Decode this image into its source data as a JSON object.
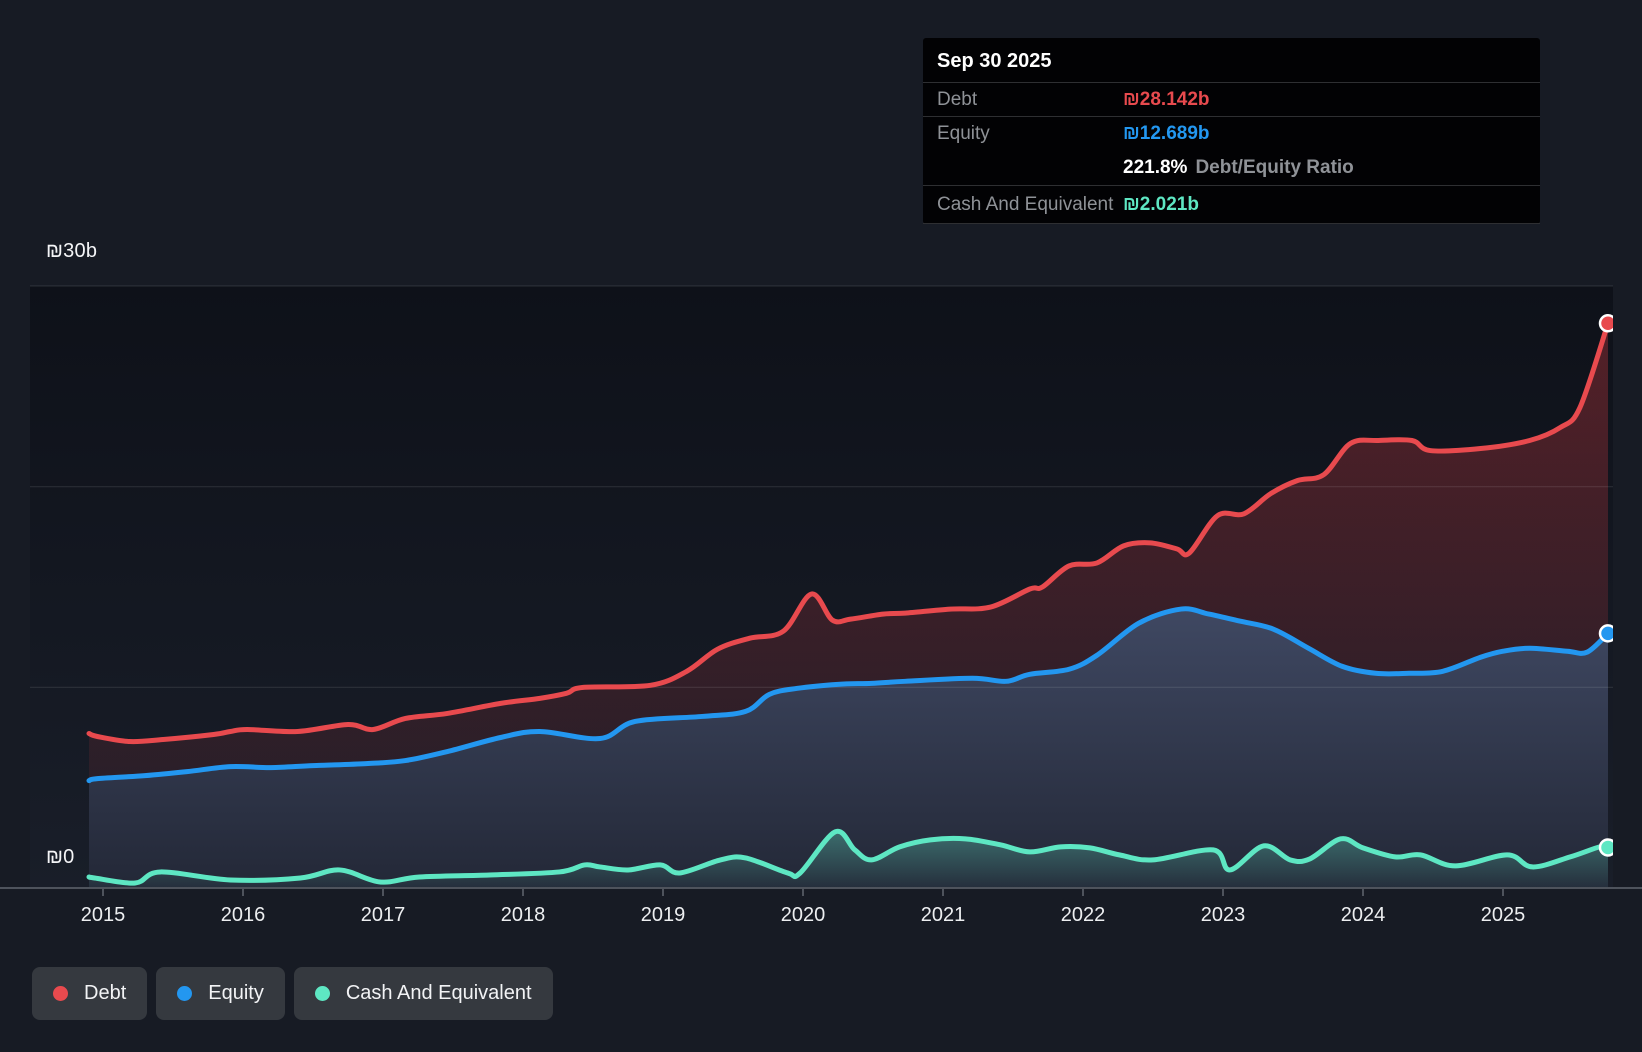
{
  "tooltip": {
    "date": "Sep 30 2025",
    "debt_label": "Debt",
    "debt_value": "₪28.142b",
    "equity_label": "Equity",
    "equity_value": "₪12.689b",
    "ratio_value": "221.8%",
    "ratio_label": "Debt/Equity Ratio",
    "cash_label": "Cash And Equivalent",
    "cash_value": "₪2.021b"
  },
  "colors": {
    "debt": "#e84a4e",
    "equity": "#2397f0",
    "cash": "#5ee7c3",
    "axis": "#4e535c",
    "gridline": "rgba(255,255,255,0.10)"
  },
  "legend": {
    "items": [
      {
        "label": "Debt",
        "color": "#e84a4e"
      },
      {
        "label": "Equity",
        "color": "#2397f0"
      },
      {
        "label": "Cash And Equivalent",
        "color": "#5ee7c3"
      }
    ]
  },
  "chart_data": {
    "type": "area",
    "x_ticks": [
      "2015",
      "2016",
      "2017",
      "2018",
      "2019",
      "2020",
      "2021",
      "2022",
      "2023",
      "2024",
      "2025"
    ],
    "ylim": [
      0,
      30
    ],
    "y_gridline_values": [
      30,
      20,
      10
    ],
    "y_axis_labels": [
      {
        "value": 30,
        "label": "₪30b"
      },
      {
        "value": 0,
        "label": "₪0"
      }
    ],
    "unit": "₪ billions",
    "legend_position": "bottom-left",
    "latest_point_date": "Sep 30 2025",
    "series": [
      {
        "name": "Debt",
        "color": "#e84a4e",
        "points": [
          [
            2014.9,
            7.7
          ],
          [
            2014.96,
            7.55
          ],
          [
            2015.19,
            7.3
          ],
          [
            2015.43,
            7.4
          ],
          [
            2015.79,
            7.65
          ],
          [
            2015.91,
            7.8
          ],
          [
            2016.03,
            7.9
          ],
          [
            2016.39,
            7.8
          ],
          [
            2016.75,
            8.15
          ],
          [
            2016.93,
            7.9
          ],
          [
            2017.16,
            8.45
          ],
          [
            2017.46,
            8.7
          ],
          [
            2017.84,
            9.2
          ],
          [
            2018.12,
            9.45
          ],
          [
            2018.31,
            9.7
          ],
          [
            2018.43,
            10.0
          ],
          [
            2018.91,
            10.1
          ],
          [
            2019.17,
            10.8
          ],
          [
            2019.39,
            11.9
          ],
          [
            2019.62,
            12.45
          ],
          [
            2019.86,
            12.8
          ],
          [
            2020.06,
            14.65
          ],
          [
            2020.21,
            13.35
          ],
          [
            2020.34,
            13.4
          ],
          [
            2020.57,
            13.65
          ],
          [
            2020.73,
            13.7
          ],
          [
            2021.05,
            13.9
          ],
          [
            2021.34,
            14.0
          ],
          [
            2021.62,
            14.9
          ],
          [
            2021.71,
            15.0
          ],
          [
            2021.9,
            16.05
          ],
          [
            2022.1,
            16.2
          ],
          [
            2022.29,
            17.05
          ],
          [
            2022.48,
            17.2
          ],
          [
            2022.67,
            16.9
          ],
          [
            2022.76,
            16.7
          ],
          [
            2022.96,
            18.55
          ],
          [
            2023.15,
            18.65
          ],
          [
            2023.34,
            19.65
          ],
          [
            2023.53,
            20.3
          ],
          [
            2023.72,
            20.6
          ],
          [
            2023.91,
            22.15
          ],
          [
            2024.11,
            22.3
          ],
          [
            2024.35,
            22.3
          ],
          [
            2024.48,
            21.8
          ],
          [
            2024.84,
            21.9
          ],
          [
            2025.19,
            22.3
          ],
          [
            2025.41,
            22.95
          ],
          [
            2025.55,
            23.95
          ],
          [
            2025.75,
            28.142
          ]
        ]
      },
      {
        "name": "Equity",
        "color": "#2397f0",
        "points": [
          [
            2014.9,
            5.35
          ],
          [
            2014.96,
            5.45
          ],
          [
            2015.3,
            5.6
          ],
          [
            2015.6,
            5.8
          ],
          [
            2015.91,
            6.05
          ],
          [
            2016.2,
            6.0
          ],
          [
            2016.5,
            6.1
          ],
          [
            2016.88,
            6.2
          ],
          [
            2017.16,
            6.35
          ],
          [
            2017.46,
            6.8
          ],
          [
            2017.84,
            7.5
          ],
          [
            2018.12,
            7.8
          ],
          [
            2018.55,
            7.45
          ],
          [
            2018.8,
            8.3
          ],
          [
            2019.28,
            8.55
          ],
          [
            2019.59,
            8.8
          ],
          [
            2019.76,
            9.65
          ],
          [
            2019.96,
            9.95
          ],
          [
            2020.25,
            10.15
          ],
          [
            2020.49,
            10.2
          ],
          [
            2020.73,
            10.3
          ],
          [
            2021.21,
            10.45
          ],
          [
            2021.45,
            10.3
          ],
          [
            2021.62,
            10.65
          ],
          [
            2021.9,
            10.9
          ],
          [
            2022.1,
            11.6
          ],
          [
            2022.4,
            13.2
          ],
          [
            2022.7,
            13.9
          ],
          [
            2022.9,
            13.65
          ],
          [
            2023.12,
            13.3
          ],
          [
            2023.36,
            12.9
          ],
          [
            2023.61,
            11.95
          ],
          [
            2023.85,
            11.05
          ],
          [
            2024.09,
            10.7
          ],
          [
            2024.33,
            10.7
          ],
          [
            2024.57,
            10.8
          ],
          [
            2024.84,
            11.5
          ],
          [
            2025.0,
            11.8
          ],
          [
            2025.19,
            11.95
          ],
          [
            2025.46,
            11.8
          ],
          [
            2025.6,
            11.75
          ],
          [
            2025.75,
            12.689
          ]
        ]
      },
      {
        "name": "Cash And Equivalent",
        "color": "#5ee7c3",
        "points": [
          [
            2014.9,
            0.55
          ],
          [
            2014.94,
            0.5
          ],
          [
            2015.23,
            0.25
          ],
          [
            2015.41,
            0.8
          ],
          [
            2015.91,
            0.4
          ],
          [
            2016.41,
            0.5
          ],
          [
            2016.69,
            0.9
          ],
          [
            2016.98,
            0.3
          ],
          [
            2017.26,
            0.55
          ],
          [
            2017.76,
            0.65
          ],
          [
            2018.26,
            0.8
          ],
          [
            2018.44,
            1.15
          ],
          [
            2018.55,
            1.05
          ],
          [
            2018.75,
            0.9
          ],
          [
            2018.98,
            1.15
          ],
          [
            2019.12,
            0.75
          ],
          [
            2019.41,
            1.4
          ],
          [
            2019.59,
            1.5
          ],
          [
            2019.89,
            0.75
          ],
          [
            2019.98,
            0.75
          ],
          [
            2020.23,
            2.8
          ],
          [
            2020.37,
            1.9
          ],
          [
            2020.49,
            1.4
          ],
          [
            2020.69,
            2.05
          ],
          [
            2020.91,
            2.4
          ],
          [
            2021.16,
            2.45
          ],
          [
            2021.41,
            2.15
          ],
          [
            2021.62,
            1.8
          ],
          [
            2021.84,
            2.05
          ],
          [
            2022.05,
            2.0
          ],
          [
            2022.26,
            1.65
          ],
          [
            2022.5,
            1.4
          ],
          [
            2022.93,
            1.9
          ],
          [
            2023.05,
            0.9
          ],
          [
            2023.29,
            2.1
          ],
          [
            2023.48,
            1.4
          ],
          [
            2023.62,
            1.45
          ],
          [
            2023.84,
            2.45
          ],
          [
            2024.0,
            2.0
          ],
          [
            2024.23,
            1.55
          ],
          [
            2024.41,
            1.65
          ],
          [
            2024.66,
            1.1
          ],
          [
            2025.03,
            1.65
          ],
          [
            2025.21,
            1.05
          ],
          [
            2025.48,
            1.55
          ],
          [
            2025.69,
            2.05
          ],
          [
            2025.75,
            2.021
          ]
        ]
      }
    ]
  }
}
